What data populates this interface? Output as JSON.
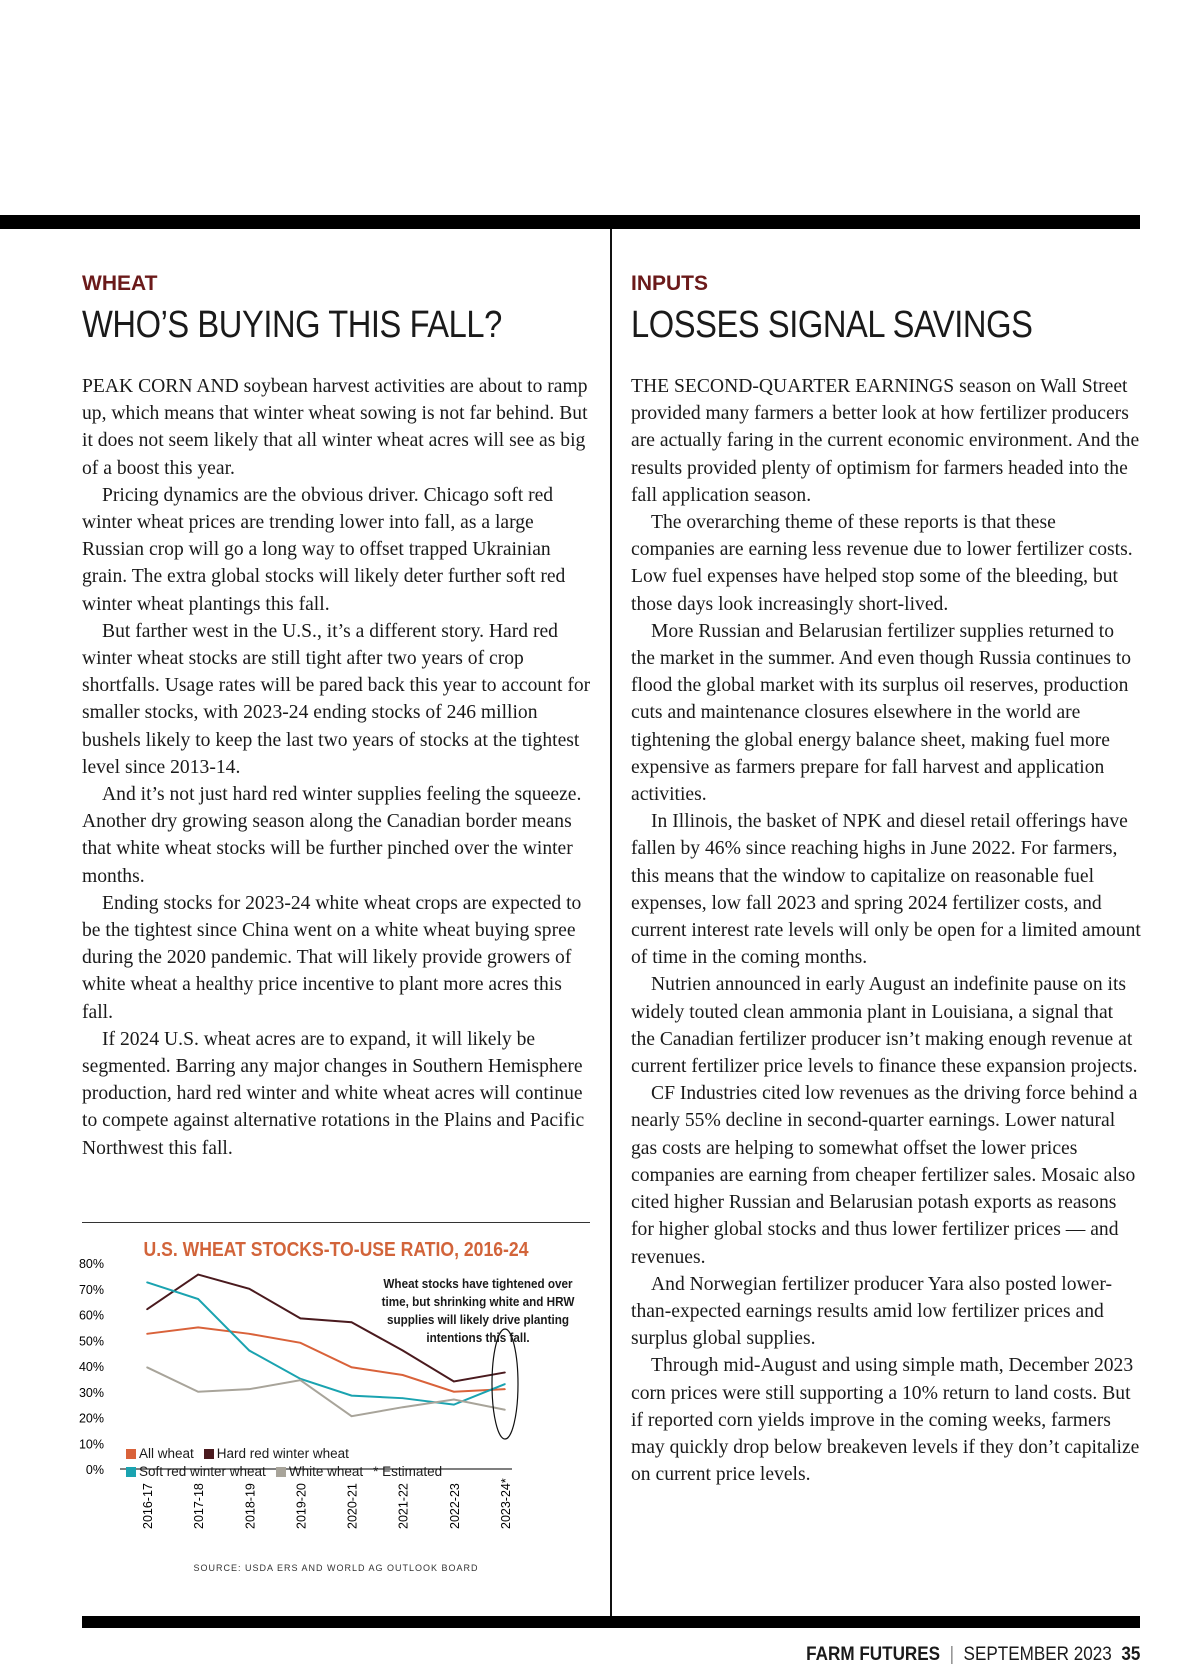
{
  "left": {
    "kicker": "WHEAT",
    "title": "WHO’S BUYING THIS FALL?",
    "paragraphs": [
      "PEAK CORN AND soybean harvest activities are about to ramp up, which means that winter wheat sowing is not far behind. But it does not seem likely that all winter wheat acres will see as big of a boost this year.",
      "Pricing dynamics are the obvious driver. Chicago soft red winter wheat prices are trending lower into fall, as a large Russian crop will go a long way to offset trapped Ukrainian grain. The extra global stocks will likely deter further soft red winter wheat plantings this fall.",
      "But farther west in the U.S., it’s a different story. Hard red winter wheat stocks are still tight after two years of crop shortfalls. Usage rates will be pared back this year to account for smaller stocks, with 2023-24 ending stocks of 246 million bushels likely to keep the last two years of stocks at the tightest level since 2013-14.",
      "And it’s not just hard red winter supplies feeling the squeeze. Another dry growing season along the Canadian border means that white wheat stocks will be further pinched over the winter months.",
      "Ending stocks for 2023-24 white wheat crops are expected to be the tightest since China went on a white wheat buying spree during the 2020 pandemic. That will likely provide growers of white wheat a healthy price incentive to plant more acres this fall.",
      "If 2024 U.S. wheat acres are to expand, it will likely be segmented. Barring any major changes in Southern Hemisphere production, hard red winter and white wheat acres will continue to compete against alternative rotations in the Plains and Pacific Northwest this fall."
    ]
  },
  "right": {
    "kicker": "INPUTS",
    "title": "LOSSES SIGNAL SAVINGS",
    "paragraphs": [
      "THE SECOND-QUARTER EARNINGS season on Wall Street provided many farmers a better look at how fertilizer producers are actually faring in the current economic environment. And the results provided plenty of optimism for farmers headed into the fall application season.",
      "The overarching theme of these reports is that these companies are earning less revenue due to lower fertilizer costs. Low fuel expenses have helped stop some of the bleeding, but those days look increasingly short-lived.",
      "More Russian and Belarusian fertilizer supplies returned to the market in the summer. And even though Russia continues to flood the global market with its surplus oil reserves, production cuts and maintenance closures elsewhere in the world are tightening the global energy balance sheet, making fuel more expensive as farmers prepare for fall harvest and application activities.",
      "In Illinois, the basket of NPK and diesel retail offerings have fallen by 46% since reaching highs in June 2022. For farmers, this means that the window to capitalize on reasonable fuel expenses, low fall 2023 and spring 2024 fertilizer costs, and current interest rate levels will only be open for a limited amount of time in the coming months.",
      "Nutrien announced in early August an indefinite pause on its widely touted clean ammonia plant in Louisiana, a signal that the Canadian fertilizer producer isn’t making enough revenue at current fertilizer price levels to finance these expansion projects.",
      "CF Industries cited low revenues as the driving force behind a nearly 55% decline in second-quarter earnings. Lower natural gas costs are helping to somewhat offset the lower prices companies are earning from cheaper fertilizer sales. Mosaic also cited higher Russian and Belarusian potash exports as reasons for higher global stocks and thus lower fertilizer prices — and revenues.",
      "And Norwegian fertilizer producer Yara also posted lower-than-expected earnings results amid low fertilizer prices and surplus global supplies.",
      "Through mid-August and using simple math, December 2023 corn prices were still supporting a 10% return to land costs. But if reported corn yields improve in the coming weeks, farmers may quickly drop below breakeven levels if they don’t capitalize on current price levels."
    ]
  },
  "chart_data": {
    "type": "line",
    "title": "U.S. WHEAT STOCKS-TO-USE RATIO, 2016-24",
    "annotation": "Wheat stocks have tightened over time, but shrinking white and HRW supplies will likely drive planting intentions this fall.",
    "categories": [
      "2016-17",
      "2017-18",
      "2018-19",
      "2019-20",
      "2020-21",
      "2021-22",
      "2022-23",
      "2023-24*"
    ],
    "yticks": [
      "0%",
      "10%",
      "20%",
      "30%",
      "40%",
      "50%",
      "60%",
      "70%",
      "80%"
    ],
    "ylim": [
      0,
      80
    ],
    "grid": false,
    "series": [
      {
        "name": "All wheat",
        "color": "#d9623a",
        "values": [
          52.5,
          55,
          52.5,
          49,
          39.5,
          36.5,
          30,
          31
        ]
      },
      {
        "name": "Hard red winter wheat",
        "color": "#4a1a1e",
        "values": [
          62,
          75.5,
          70,
          58.5,
          57,
          46,
          34,
          37.5
        ]
      },
      {
        "name": "Soft red winter wheat",
        "color": "#1aa3b0",
        "values": [
          72.5,
          66,
          46,
          35,
          28.5,
          27.5,
          25,
          33
        ]
      },
      {
        "name": "White wheat",
        "color": "#a8a49a",
        "values": [
          39.5,
          30,
          31,
          34.5,
          20.5,
          24,
          27,
          23
        ]
      }
    ],
    "note": "* Estimated",
    "source": "SOURCE: USDA ERS AND WORLD AG OUTLOOK BOARD",
    "legend": "bottom-left"
  },
  "footer": {
    "brand": "FARM FUTURES",
    "issue": "SEPTEMBER 2023",
    "page": "35"
  }
}
